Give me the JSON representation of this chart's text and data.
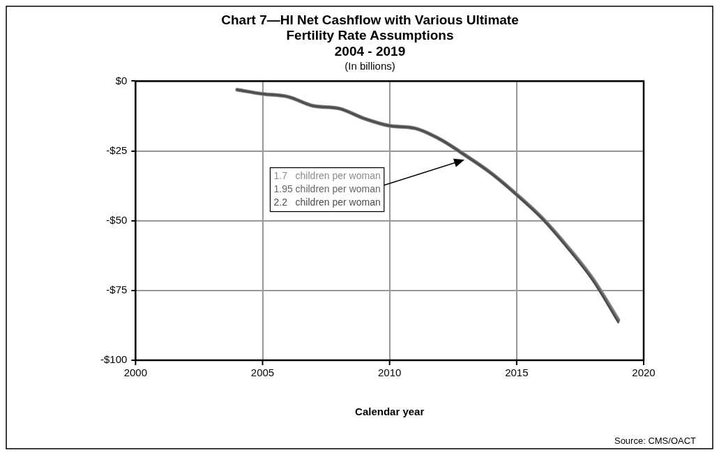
{
  "chart_data": {
    "type": "line",
    "title": "Chart 7—HI Net Cashflow with Various Ultimate\nFertility Rate Assumptions\n2004 - 2019",
    "subtitle": "(In billions)",
    "xlabel": "Calendar year",
    "x": [
      2004,
      2005,
      2006,
      2007,
      2008,
      2009,
      2010,
      2011,
      2012,
      2013,
      2014,
      2015,
      2016,
      2017,
      2018,
      2019
    ],
    "series": [
      {
        "name": "1.7   children per woman",
        "color": "#8c8c8c",
        "values": [
          -3.1,
          -4.6,
          -5.6,
          -8.9,
          -9.8,
          -13.4,
          -16.0,
          -16.9,
          -20.9,
          -26.7,
          -33.0,
          -40.6,
          -49.0,
          -59.3,
          -70.9,
          -85.5
        ]
      },
      {
        "name": "1.95 children per woman",
        "color": "#666666",
        "values": [
          -3.1,
          -4.6,
          -5.6,
          -8.9,
          -9.8,
          -13.4,
          -16.0,
          -16.9,
          -20.9,
          -26.7,
          -33.0,
          -40.7,
          -49.2,
          -59.6,
          -71.2,
          -86.0
        ]
      },
      {
        "name": "2.2   children per woman",
        "color": "#4d4d4d",
        "values": [
          -3.1,
          -4.6,
          -5.6,
          -8.9,
          -9.8,
          -13.4,
          -16.0,
          -16.9,
          -20.9,
          -26.8,
          -33.1,
          -40.8,
          -49.3,
          -59.8,
          -71.5,
          -86.5
        ]
      }
    ],
    "xlim": [
      2000,
      2020
    ],
    "xticks": [
      2000,
      2005,
      2010,
      2015,
      2020
    ],
    "ylim": [
      -100,
      0
    ],
    "yticks": [
      {
        "value": -100,
        "label": "-$100"
      },
      {
        "value": -75,
        "label": "-$75"
      },
      {
        "value": -50,
        "label": "-$50"
      },
      {
        "value": -25,
        "label": "-$25"
      },
      {
        "value": 0,
        "label": "$0"
      }
    ],
    "grid": true,
    "marker": "none",
    "line_style": "solid",
    "legend": "left",
    "annotations": [
      "Source: CMS/OACT"
    ]
  }
}
